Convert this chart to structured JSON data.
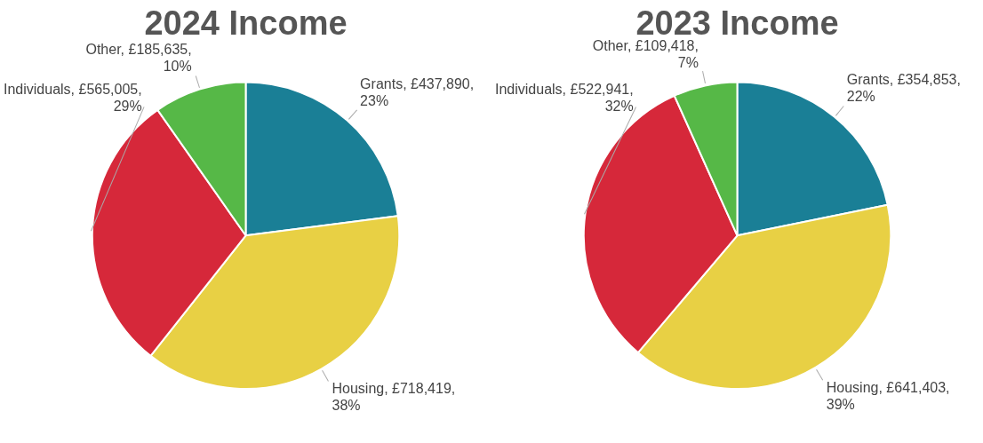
{
  "chart_data": [
    {
      "type": "pie",
      "title": "2024 Income",
      "categories": [
        "Grants",
        "Housing",
        "Individuals",
        "Other"
      ],
      "values": [
        437890,
        718419,
        565005,
        185635
      ],
      "colors": [
        "#1a7f96",
        "#e8d044",
        "#d6283a",
        "#56b847"
      ],
      "value_labels": [
        "£437,890, 23%",
        "£718,419, 38%",
        "£565,005, 29%",
        "£185,635, 10%"
      ],
      "legend": false
    },
    {
      "type": "pie",
      "title": "2023 Income",
      "categories": [
        "Grants",
        "Housing",
        "Individuals",
        "Other"
      ],
      "values": [
        354853,
        641403,
        522941,
        109418
      ],
      "colors": [
        "#1a7f96",
        "#e8d044",
        "#d6283a",
        "#56b847"
      ],
      "value_labels": [
        "£354,853, 22%",
        "£641,403, 39%",
        "£522,941, 32%",
        "£109,418, 7%"
      ],
      "legend": false
    }
  ]
}
